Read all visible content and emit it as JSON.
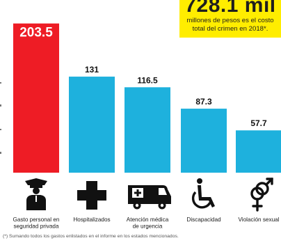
{
  "callout": {
    "amount": "728.1 mil",
    "line1": "millones de pesos es el costo",
    "line2": "total del crimen en 2018*."
  },
  "footnote": "(*) Sumando todos los gastos enlistados en el informe en los estados mencionados.",
  "chart_data": {
    "type": "bar",
    "categories": [
      [
        "Gasto personal en",
        "seguridad privada"
      ],
      [
        "Hospitalizados"
      ],
      [
        "Atención médica",
        "de urgencia"
      ],
      [
        "Discapacidad"
      ],
      [
        "Violación sexual"
      ]
    ],
    "values": [
      203.5,
      131,
      116.5,
      87.3,
      57.7
    ],
    "value_labels": [
      "203.5",
      "131",
      "116.5",
      "87.3",
      "57.7"
    ],
    "unit": "millones de pesos",
    "colors": [
      "#ee1c25",
      "#1eb1dd",
      "#1eb1dd",
      "#1eb1dd",
      "#1eb1dd"
    ],
    "icons": [
      "security-guard-icon",
      "medical-cross-icon",
      "ambulance-icon",
      "wheelchair-icon",
      "gender-symbols-icon"
    ],
    "grid": false,
    "legend": "none"
  }
}
